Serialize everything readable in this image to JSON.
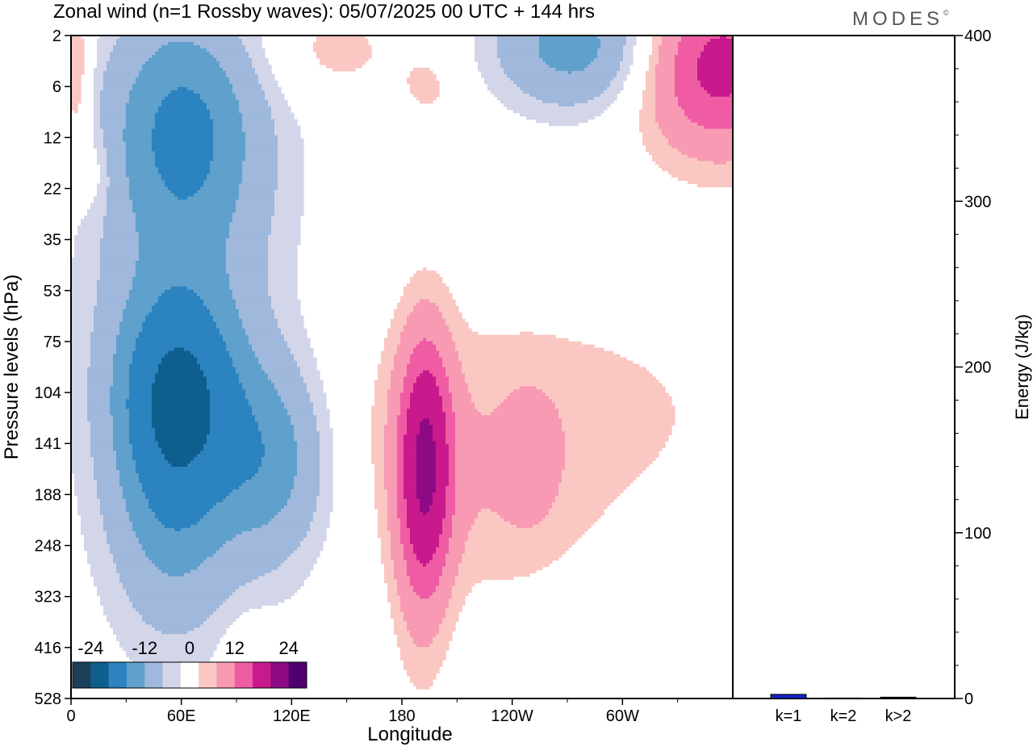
{
  "title": "Zonal wind (n=1 Rossby waves):  05/07/2025  00 UTC  + 144 hrs",
  "brand": "MODES",
  "brand_mark": "©",
  "colors": {
    "bins": [
      "#1c3f5a",
      "#0f5f8e",
      "#2b83c0",
      "#5fa0cc",
      "#9fb8dc",
      "#d3d6e9",
      "#ffffff",
      "#fbc7c2",
      "#f89ab4",
      "#ef5ca4",
      "#c8198d",
      "#8d0a84",
      "#4f006e"
    ],
    "energy_bar": "#1424c8"
  },
  "chart_data": [
    {
      "type": "heatmap",
      "xlabel": "Longitude",
      "ylabel": "Pressure levels (hPa)",
      "x_ticks": [
        "0",
        "60E",
        "120E",
        "180",
        "120W",
        "60W"
      ],
      "x_tick_degrees": [
        0,
        60,
        120,
        180,
        240,
        300
      ],
      "xlim": [
        0,
        360
      ],
      "y_ticks": [
        2,
        6,
        12,
        22,
        35,
        53,
        75,
        104,
        141,
        188,
        248,
        323,
        416,
        528
      ],
      "colorbar": {
        "tick_labels": [
          "-24",
          "-12",
          "0",
          "12",
          "24"
        ],
        "levels": [
          -30,
          -24,
          -18,
          -12,
          -8,
          -4,
          -2,
          2,
          4,
          8,
          12,
          18,
          24,
          30
        ]
      },
      "field_blobs": [
        {
          "lon": 58,
          "lev": 7,
          "amp": -15,
          "lon_w": 24,
          "lev_w": 1.5
        },
        {
          "lon": 60,
          "lev": 6.5,
          "amp": -4,
          "lon_w": 42,
          "lev_w": 4.0
        },
        {
          "lon": 110,
          "lev": 8.3,
          "amp": -9,
          "lon_w": 22,
          "lev_w": 1.4
        },
        {
          "lon": 55,
          "lev": 9.5,
          "amp": -6,
          "lon_w": 22,
          "lev_w": 1.6
        },
        {
          "lon": 60,
          "lev": 1.7,
          "amp": -9,
          "lon_w": 28,
          "lev_w": 1.6
        },
        {
          "lon": 68,
          "lev": 2.5,
          "amp": -3,
          "lon_w": 38,
          "lev_w": 2.0
        },
        {
          "lon": 275,
          "lev": 0.2,
          "amp": -10,
          "lon_w": 32,
          "lev_w": 0.9
        },
        {
          "lon": 193,
          "lev": 8.3,
          "amp": 14,
          "lon_w": 10,
          "lev_w": 1.7
        },
        {
          "lon": 190,
          "lev": 9.8,
          "amp": 4,
          "lon_w": 11,
          "lev_w": 2.2
        },
        {
          "lon": 245,
          "lev": 7.4,
          "amp": 3,
          "lon_w": 90,
          "lev_w": 1.6
        },
        {
          "lon": 228,
          "lev": 9.4,
          "amp": 2.4,
          "lon_w": 40,
          "lev_w": 1.4
        },
        {
          "lon": 250,
          "lev": 8.3,
          "amp": 2.6,
          "lon_w": 10,
          "lev_w": 0.9
        },
        {
          "lon": 352,
          "lev": 0.6,
          "amp": 14,
          "lon_w": 30,
          "lev_w": 1.2
        },
        {
          "lon": 140,
          "lev": 0.3,
          "amp": 3,
          "lon_w": 28,
          "lev_w": 0.7
        },
        {
          "lon": 195,
          "lev": 1.0,
          "amp": 2.5,
          "lon_w": 12,
          "lev_w": 0.5
        },
        {
          "lon": 3,
          "lev": 0.8,
          "amp": 5,
          "lon_w": 6,
          "lev_w": 1.3
        },
        {
          "lon": 14,
          "lev": 2.7,
          "amp": 2.5,
          "lon_w": 7,
          "lev_w": 0.6
        },
        {
          "lon": 97,
          "lev": 12.3,
          "amp": 3,
          "lon_w": 10,
          "lev_w": 0.6
        },
        {
          "lon": 28,
          "lev": 13.2,
          "amp": 2.3,
          "lon_w": 8,
          "lev_w": 0.3
        }
      ]
    },
    {
      "type": "bar",
      "ylabel": "Energy (J/kg)",
      "ylim": [
        0,
        400
      ],
      "y_ticks": [
        0,
        100,
        200,
        300,
        400
      ],
      "categories": [
        "k=1",
        "k=2",
        "k>2"
      ],
      "values": [
        2.5,
        0.3,
        0.8
      ]
    }
  ]
}
